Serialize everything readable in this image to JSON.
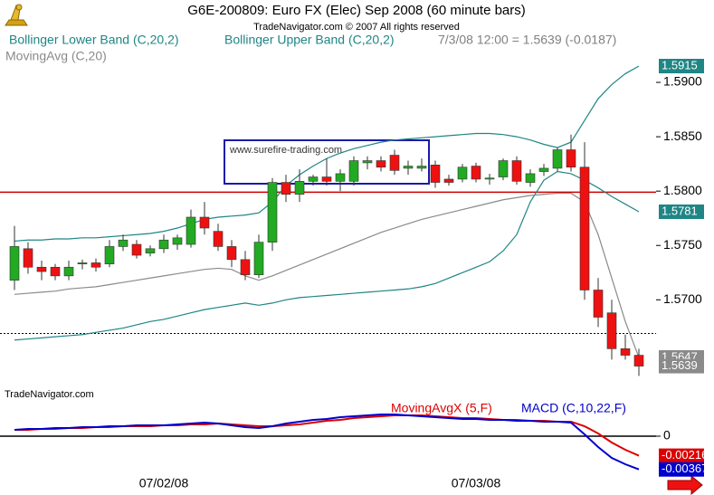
{
  "chart_data": [
    {
      "type": "candlestick",
      "title": "G6E-200809:  Euro FX (Elec) Sep 2008  (60 minute bars)",
      "copyright": "TradeNavigator.com © 2007 All rights reserved",
      "header_quote": "7/3/08 12:00 = 1.5639 (-0.0187)",
      "watermark": "www.surefire-trading.com",
      "source": "TradeNavigator.com",
      "up_color": "#22aa22",
      "down_color": "#ee1111",
      "close_label_color": "#8a8a8a",
      "open": [
        1.5718,
        1.5747,
        1.573,
        1.573,
        1.5722,
        1.5733,
        1.5734,
        1.5733,
        1.5749,
        1.5751,
        1.5743,
        1.5747,
        1.5751,
        1.5751,
        1.5776,
        1.5763,
        1.5749,
        1.5737,
        1.5723,
        1.5753,
        1.5808,
        1.5797,
        1.5809,
        1.5813,
        1.5809,
        1.5809,
        1.5826,
        1.5828,
        1.5833,
        1.5821,
        1.5821,
        1.5824,
        1.5811,
        1.5811,
        1.5823,
        1.5811,
        1.5813,
        1.5828,
        1.5808,
        1.5818,
        1.5821,
        1.5838,
        1.5822,
        1.5709,
        1.5688,
        1.5655,
        1.5649
      ],
      "high": [
        1.5768,
        1.5753,
        1.5736,
        1.5733,
        1.5736,
        1.5737,
        1.5738,
        1.5755,
        1.576,
        1.5755,
        1.575,
        1.576,
        1.576,
        1.5783,
        1.579,
        1.577,
        1.5755,
        1.5745,
        1.576,
        1.5812,
        1.5815,
        1.582,
        1.5815,
        1.583,
        1.582,
        1.5832,
        1.5832,
        1.5832,
        1.5838,
        1.5828,
        1.583,
        1.5828,
        1.5815,
        1.5825,
        1.5826,
        1.5816,
        1.583,
        1.5832,
        1.582,
        1.5825,
        1.584,
        1.5852,
        1.5845,
        1.572,
        1.57,
        1.5668,
        1.5655
      ],
      "low": [
        1.5709,
        1.5724,
        1.5718,
        1.5718,
        1.5718,
        1.5728,
        1.5726,
        1.573,
        1.5745,
        1.5738,
        1.574,
        1.5743,
        1.5746,
        1.5748,
        1.576,
        1.5745,
        1.573,
        1.5718,
        1.572,
        1.5745,
        1.579,
        1.579,
        1.5805,
        1.5805,
        1.58,
        1.5805,
        1.582,
        1.5818,
        1.5815,
        1.5815,
        1.5818,
        1.5803,
        1.5805,
        1.5808,
        1.5808,
        1.5806,
        1.581,
        1.5806,
        1.5804,
        1.5814,
        1.5818,
        1.5818,
        1.57,
        1.5675,
        1.5645,
        1.5645,
        1.563
      ],
      "close": [
        1.5749,
        1.573,
        1.5726,
        1.5722,
        1.573,
        1.5734,
        1.573,
        1.5749,
        1.5755,
        1.5741,
        1.5747,
        1.5755,
        1.5757,
        1.5776,
        1.5766,
        1.5749,
        1.5737,
        1.5723,
        1.5753,
        1.5808,
        1.5797,
        1.5809,
        1.5813,
        1.5809,
        1.5816,
        1.5828,
        1.5828,
        1.5822,
        1.5819,
        1.5823,
        1.5823,
        1.5808,
        1.5808,
        1.5822,
        1.5811,
        1.5812,
        1.5828,
        1.5809,
        1.5816,
        1.5821,
        1.5838,
        1.5822,
        1.5709,
        1.5684,
        1.5655,
        1.5649,
        1.5639
      ],
      "series": [
        {
          "name": "Bollinger Lower Band (C,20,2)",
          "color": "#1f8585",
          "values": [
            1.5663,
            1.5664,
            1.5665,
            1.5666,
            1.5667,
            1.5668,
            1.567,
            1.5672,
            1.5674,
            1.5677,
            1.568,
            1.5682,
            1.5685,
            1.5688,
            1.5691,
            1.5693,
            1.5695,
            1.5697,
            1.5695,
            1.5697,
            1.57,
            1.5702,
            1.5703,
            1.5704,
            1.5705,
            1.5706,
            1.5707,
            1.5708,
            1.5709,
            1.571,
            1.5712,
            1.5715,
            1.572,
            1.5725,
            1.573,
            1.5735,
            1.5745,
            1.576,
            1.579,
            1.581,
            1.5818,
            1.5816,
            1.581,
            1.5803,
            1.5795,
            1.5788,
            1.5781
          ]
        },
        {
          "name": "Bollinger Upper Band (C,20,2)",
          "color": "#1f8585",
          "values": [
            1.5754,
            1.5755,
            1.5755,
            1.5756,
            1.5756,
            1.5757,
            1.5757,
            1.5758,
            1.5759,
            1.576,
            1.5761,
            1.5763,
            1.5766,
            1.577,
            1.5774,
            1.5776,
            1.5777,
            1.5778,
            1.578,
            1.579,
            1.5805,
            1.5815,
            1.5823,
            1.583,
            1.5835,
            1.5839,
            1.5842,
            1.5845,
            1.5847,
            1.5848,
            1.5849,
            1.585,
            1.5851,
            1.5852,
            1.5853,
            1.5853,
            1.5852,
            1.585,
            1.5847,
            1.5843,
            1.584,
            1.5845,
            1.5865,
            1.5885,
            1.5898,
            1.5908,
            1.5915
          ]
        },
        {
          "name": "MovingAvg (C,20)",
          "color": "#8a8a8a",
          "values": [
            1.5705,
            1.5706,
            1.5707,
            1.5708,
            1.571,
            1.5711,
            1.5712,
            1.5714,
            1.5716,
            1.5718,
            1.572,
            1.5722,
            1.5724,
            1.5726,
            1.5728,
            1.5729,
            1.5728,
            1.5722,
            1.5718,
            1.5722,
            1.5727,
            1.5732,
            1.5737,
            1.5742,
            1.5747,
            1.5752,
            1.5757,
            1.5762,
            1.5766,
            1.577,
            1.5774,
            1.5777,
            1.578,
            1.5783,
            1.5786,
            1.5789,
            1.5792,
            1.5794,
            1.5796,
            1.5797,
            1.5798,
            1.5798,
            1.579,
            1.576,
            1.572,
            1.568,
            1.5647
          ]
        }
      ],
      "hline": 1.5799,
      "hline_color": "#cc0000",
      "dotted_line": 1.5669,
      "ylim": [
        1.5622,
        1.5925
      ],
      "yticks": [
        {
          "value": 1.59,
          "label": "1.5900"
        },
        {
          "value": 1.585,
          "label": "1.5850"
        },
        {
          "value": 1.58,
          "label": "1.5800"
        },
        {
          "value": 1.575,
          "label": "1.5750"
        },
        {
          "value": 1.57,
          "label": "1.5700"
        }
      ]
    },
    {
      "type": "line",
      "categories": [
        null,
        null,
        null,
        null,
        null,
        null,
        null,
        null,
        null,
        null,
        null,
        "07/02/08",
        null,
        null,
        null,
        null,
        null,
        null,
        null,
        null,
        null,
        null,
        null,
        null,
        null,
        null,
        null,
        null,
        null,
        null,
        null,
        null,
        null,
        null,
        "07/03/08",
        null,
        null,
        null,
        null,
        null,
        null,
        null,
        null,
        null,
        null,
        null,
        null
      ],
      "series": [
        {
          "name": "MovingAvgX (5,F)",
          "color": "#dd0000",
          "values": [
            0.0007,
            0.0007,
            0.0008,
            0.0008,
            0.0009,
            0.0009,
            0.001,
            0.001,
            0.0011,
            0.0011,
            0.0011,
            0.0012,
            0.0012,
            0.0013,
            0.0013,
            0.0014,
            0.0013,
            0.0012,
            0.0011,
            0.0011,
            0.0012,
            0.0013,
            0.0015,
            0.0017,
            0.0018,
            0.002,
            0.0021,
            0.0022,
            0.0023,
            0.0023,
            0.0023,
            0.0022,
            0.0021,
            0.002,
            0.002,
            0.0019,
            0.0018,
            0.0018,
            0.0017,
            0.0017,
            0.0016,
            0.0016,
            0.0011,
            0.0003,
            -0.0007,
            -0.0015,
            -0.00216
          ]
        },
        {
          "name": "MACD (C,10,22,F)",
          "color": "#0000cc",
          "values": [
            0.0007,
            0.0008,
            0.0008,
            0.0009,
            0.0009,
            0.001,
            0.001,
            0.0011,
            0.0011,
            0.0012,
            0.0012,
            0.0012,
            0.0013,
            0.0014,
            0.0015,
            0.0014,
            0.0012,
            0.001,
            0.0009,
            0.0011,
            0.0014,
            0.0016,
            0.0018,
            0.0019,
            0.0021,
            0.0022,
            0.0023,
            0.0024,
            0.0024,
            0.0023,
            0.0022,
            0.0021,
            0.002,
            0.0019,
            0.0019,
            0.0018,
            0.0018,
            0.0017,
            0.0017,
            0.0016,
            0.0016,
            0.0015,
            0.0002,
            -0.0012,
            -0.0024,
            -0.0031,
            -0.00367
          ]
        }
      ],
      "zero_line": true,
      "ylim": [
        -0.0048,
        0.0042
      ],
      "yticks": [
        0
      ]
    }
  ]
}
